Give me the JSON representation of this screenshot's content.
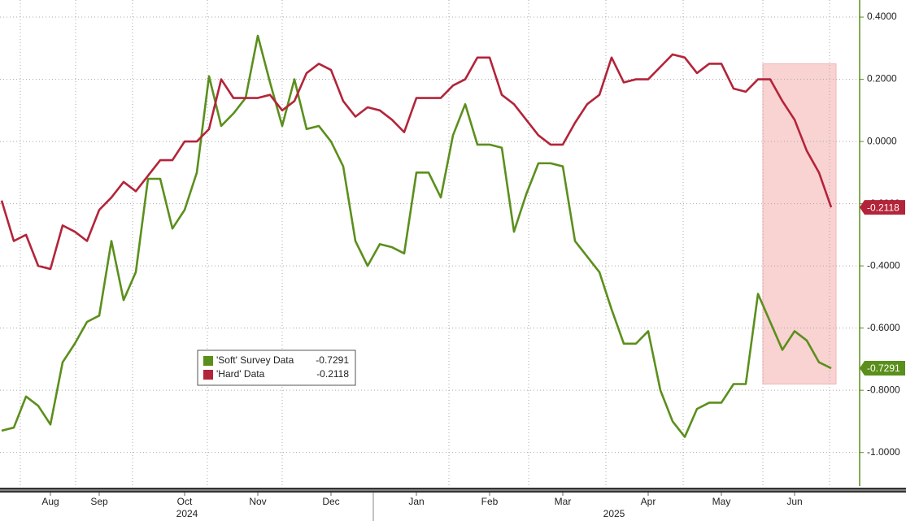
{
  "chart_data": {
    "type": "line",
    "categories": [
      null,
      null,
      null,
      null,
      "Aug",
      null,
      null,
      null,
      "Sep",
      null,
      null,
      null,
      null,
      null,
      null,
      "Oct",
      null,
      null,
      null,
      null,
      null,
      "Nov",
      null,
      null,
      null,
      null,
      null,
      "Dec",
      null,
      null,
      null,
      null,
      null,
      null,
      "Jan",
      null,
      null,
      null,
      null,
      null,
      "Feb",
      null,
      null,
      null,
      null,
      null,
      "Mar",
      null,
      null,
      null,
      null,
      null,
      null,
      "Apr",
      null,
      null,
      null,
      null,
      null,
      "May",
      null,
      null,
      null,
      null,
      null,
      "Jun",
      null,
      null,
      null
    ],
    "years": [
      "2024",
      "2025"
    ],
    "series": [
      {
        "name": "'Soft' Survey Data",
        "color": "#5b8f1c",
        "values": [
          -0.93,
          -0.92,
          -0.82,
          -0.85,
          -0.91,
          -0.71,
          -0.65,
          -0.58,
          -0.56,
          -0.32,
          -0.51,
          -0.42,
          -0.12,
          -0.12,
          -0.28,
          -0.22,
          -0.1,
          0.21,
          0.05,
          0.09,
          0.14,
          0.34,
          0.19,
          0.05,
          0.2,
          0.04,
          0.05,
          0.0,
          -0.08,
          -0.32,
          -0.4,
          -0.33,
          -0.34,
          -0.36,
          -0.1,
          -0.1,
          -0.18,
          0.02,
          0.12,
          -0.01,
          -0.01,
          -0.02,
          -0.29,
          -0.17,
          -0.07,
          -0.07,
          -0.08,
          -0.32,
          -0.37,
          -0.42,
          -0.54,
          -0.65,
          -0.65,
          -0.61,
          -0.8,
          -0.9,
          -0.95,
          -0.86,
          -0.84,
          -0.84,
          -0.78,
          -0.78,
          -0.49,
          -0.58,
          -0.67,
          -0.61,
          -0.64,
          -0.71,
          -0.7291
        ]
      },
      {
        "name": "'Hard' Data",
        "color": "#b3243a",
        "values": [
          -0.19,
          -0.32,
          -0.3,
          -0.4,
          -0.41,
          -0.27,
          -0.29,
          -0.32,
          -0.22,
          -0.18,
          -0.13,
          -0.16,
          -0.11,
          -0.06,
          -0.06,
          0.0,
          0.0,
          0.04,
          0.2,
          0.14,
          0.14,
          0.14,
          0.15,
          0.1,
          0.13,
          0.22,
          0.25,
          0.23,
          0.13,
          0.08,
          0.11,
          0.1,
          0.07,
          0.03,
          0.14,
          0.14,
          0.14,
          0.18,
          0.2,
          0.27,
          0.27,
          0.15,
          0.12,
          0.07,
          0.02,
          -0.01,
          -0.01,
          0.06,
          0.12,
          0.15,
          0.27,
          0.19,
          0.2,
          0.2,
          0.24,
          0.28,
          0.27,
          0.22,
          0.25,
          0.25,
          0.17,
          0.16,
          0.2,
          0.2,
          0.13,
          0.07,
          -0.03,
          -0.1,
          -0.2118
        ]
      }
    ],
    "ylim": [
      -1.108,
      0.455
    ],
    "yticks": [
      {
        "value": 0.4,
        "label": "0.4000"
      },
      {
        "value": 0.2,
        "label": "0.2000"
      },
      {
        "value": 0,
        "label": "0.0000"
      },
      {
        "value": -0.2,
        "label": "-0.2000"
      },
      {
        "value": -0.4,
        "label": "-0.4000"
      },
      {
        "value": -0.6,
        "label": "-0.6000"
      },
      {
        "value": -0.8,
        "label": "-0.8000"
      },
      {
        "value": -1,
        "label": "-1.0000"
      }
    ],
    "grid": true,
    "highlight": {
      "ylim": [
        -0.78,
        0.25
      ],
      "color": "#f9d2d2"
    }
  }
}
